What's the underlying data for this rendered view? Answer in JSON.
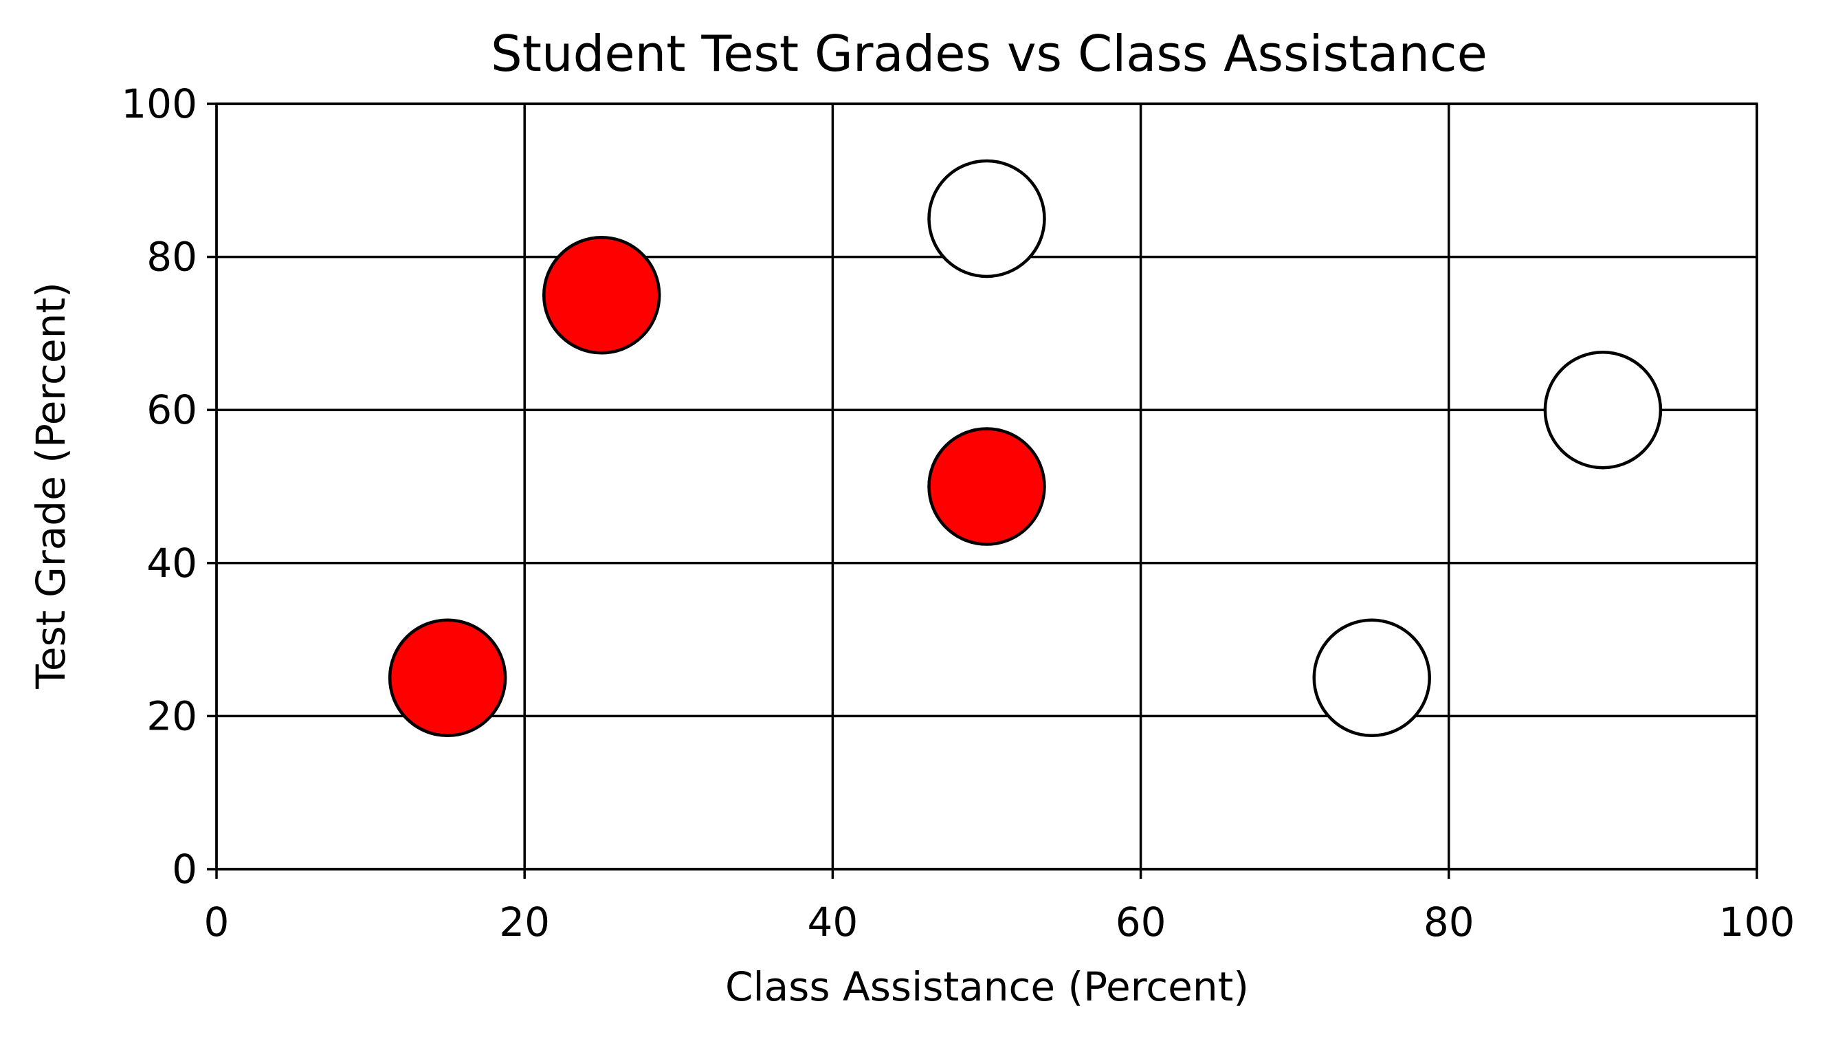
{
  "chart_data": {
    "type": "scatter",
    "title": "Student Test Grades vs Class Assistance",
    "xlabel": "Class Assistance (Percent)",
    "ylabel": "Test Grade (Percent)",
    "xlim": [
      0,
      100
    ],
    "ylim": [
      0,
      100
    ],
    "x_ticks": [
      0,
      20,
      40,
      60,
      80,
      100
    ],
    "y_ticks": [
      0,
      20,
      40,
      60,
      80,
      100
    ],
    "grid": true,
    "legend": false,
    "points": [
      {
        "x": 15,
        "y": 25,
        "color": "#ff0000"
      },
      {
        "x": 25,
        "y": 75,
        "color": "#ff0000"
      },
      {
        "x": 50,
        "y": 50,
        "color": "#ff0000"
      },
      {
        "x": 50,
        "y": 85,
        "color": "#ffffff"
      },
      {
        "x": 75,
        "y": 25,
        "color": "#ffffff"
      },
      {
        "x": 90,
        "y": 60,
        "color": "#ffffff"
      }
    ],
    "marker_edge_color": "#000000"
  }
}
